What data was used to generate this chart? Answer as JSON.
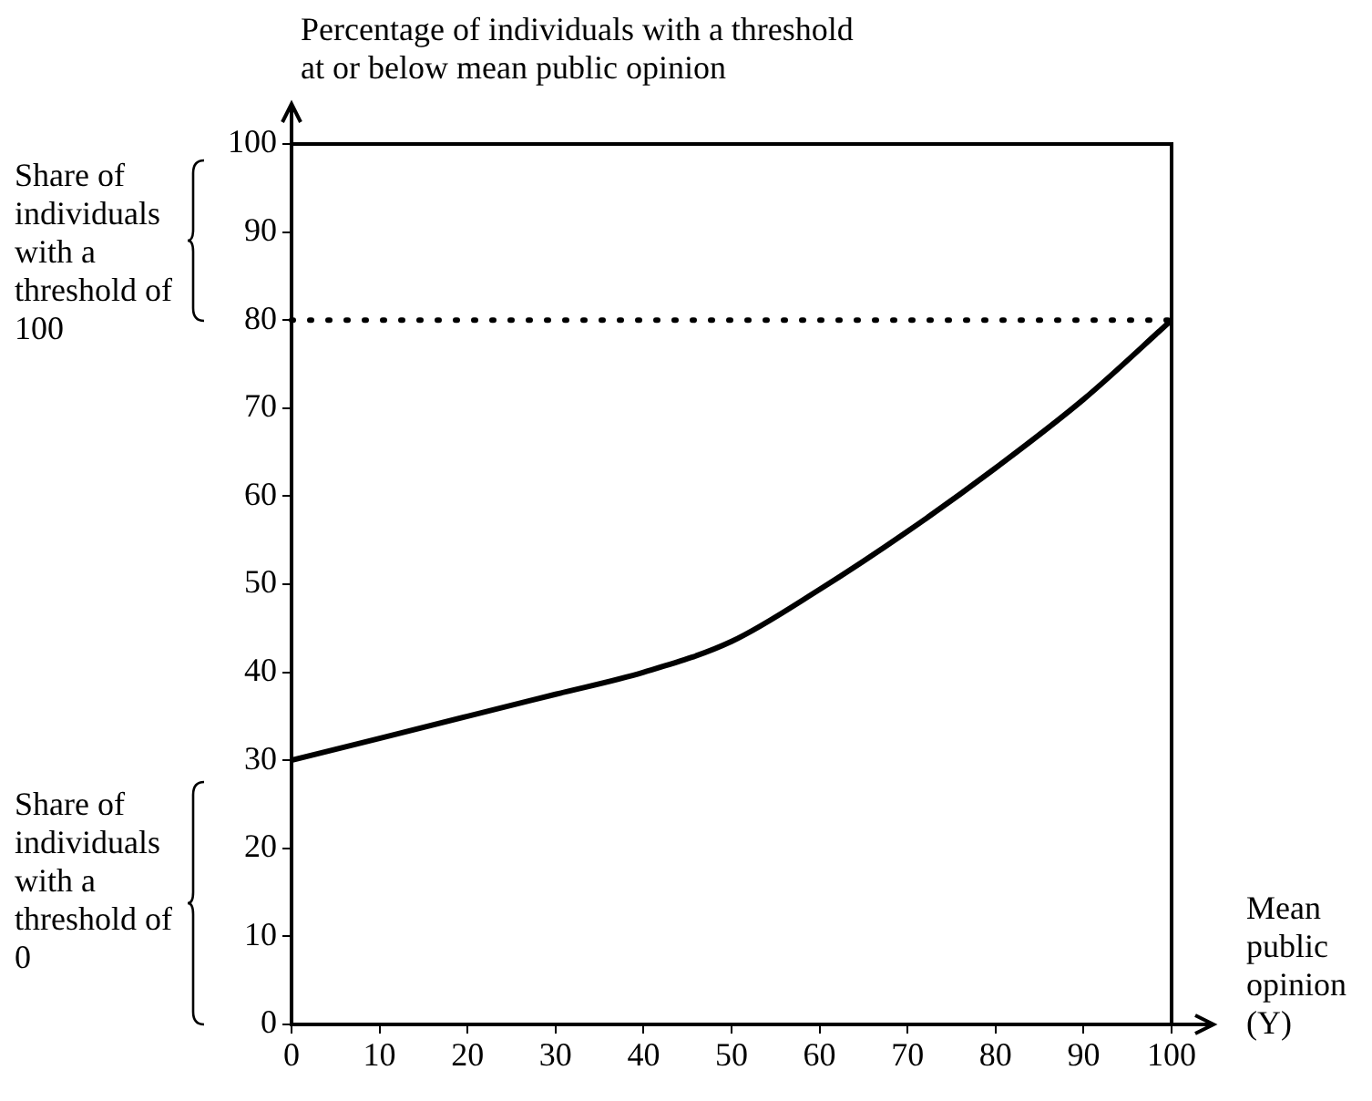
{
  "chart_data": {
    "type": "line",
    "xlabel": "Mean public opinion (Y)",
    "ylabel": "Percentage of individuals with a threshold at or below mean public opinion",
    "x": [
      0,
      10,
      20,
      30,
      40,
      50,
      60,
      70,
      80,
      90,
      100
    ],
    "values": [
      30,
      32.5,
      35,
      37.5,
      40,
      43.5,
      49.4,
      56,
      63.2,
      71,
      80
    ],
    "color": "#000000",
    "xlim": [
      0,
      100
    ],
    "ylim": [
      0,
      100
    ],
    "xticks": [
      0,
      10,
      20,
      30,
      40,
      50,
      60,
      70,
      80,
      90,
      100
    ],
    "yticks": [
      0,
      10,
      20,
      30,
      40,
      50,
      60,
      70,
      80,
      90,
      100
    ],
    "grid": false,
    "legend": false,
    "marker": "none",
    "line_style": "solid",
    "ref_lines": [
      {
        "axis": "y",
        "value": 80,
        "line_style": "dotted"
      }
    ],
    "annotations": [
      "Share of individuals with a threshold of 100",
      "Share of individuals with a threshold of 0"
    ]
  }
}
